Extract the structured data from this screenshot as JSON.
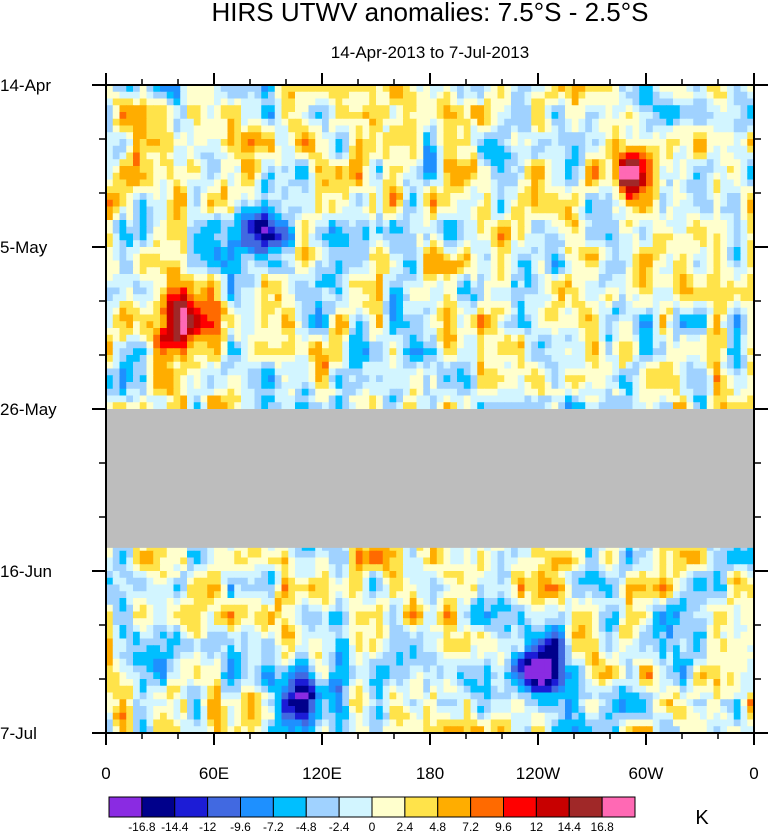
{
  "chart_data": {
    "type": "heatmap",
    "title": "HIRS UTWV anomalies: 7.5°S - 2.5°S",
    "subtitle": "14-Apr-2013 to 7-Jul-2013",
    "x_ticks": [
      "0",
      "60E",
      "120E",
      "180",
      "120W",
      "60W",
      "0"
    ],
    "x_range_deg_east": [
      0,
      360
    ],
    "y_ticks": [
      "14-Apr",
      "5-May",
      "26-May",
      "16-Jun",
      "7-Jul"
    ],
    "y_range_days": [
      0,
      84
    ],
    "missing_data_band_days": [
      42,
      60
    ],
    "missing_color": "#bdbdbd",
    "colorbar": {
      "units": "K",
      "levels": [
        "-16.8",
        "-14.4",
        "-12",
        "-9.6",
        "-7.2",
        "-4.8",
        "-2.4",
        "0",
        "2.4",
        "4.8",
        "7.2",
        "9.6",
        "12",
        "14.4",
        "16.8"
      ],
      "colors": [
        "#8a2be2",
        "#00008b",
        "#1c1cd6",
        "#4169e1",
        "#1e90ff",
        "#00bfff",
        "#a0d2ff",
        "#d2f5ff",
        "#ffffcd",
        "#ffe34a",
        "#ffad00",
        "#ff6a00",
        "#ff0000",
        "#c80000",
        "#a02828",
        "#ff69b4"
      ]
    },
    "notable_features": [
      {
        "label": "max positive anomaly",
        "lon_deg_east": 42,
        "day": 31,
        "value": 18
      },
      {
        "label": "positive anomaly",
        "lon_deg_east": 293,
        "day": 11,
        "value": 15
      },
      {
        "label": "negative anomaly",
        "lon_deg_east": 82,
        "day": 19,
        "value": -15
      },
      {
        "label": "negative anomaly",
        "lon_deg_east": 240,
        "day": 75,
        "value": -15
      },
      {
        "label": "negative anomaly",
        "lon_deg_east": 110,
        "day": 79,
        "value": -13
      }
    ]
  }
}
